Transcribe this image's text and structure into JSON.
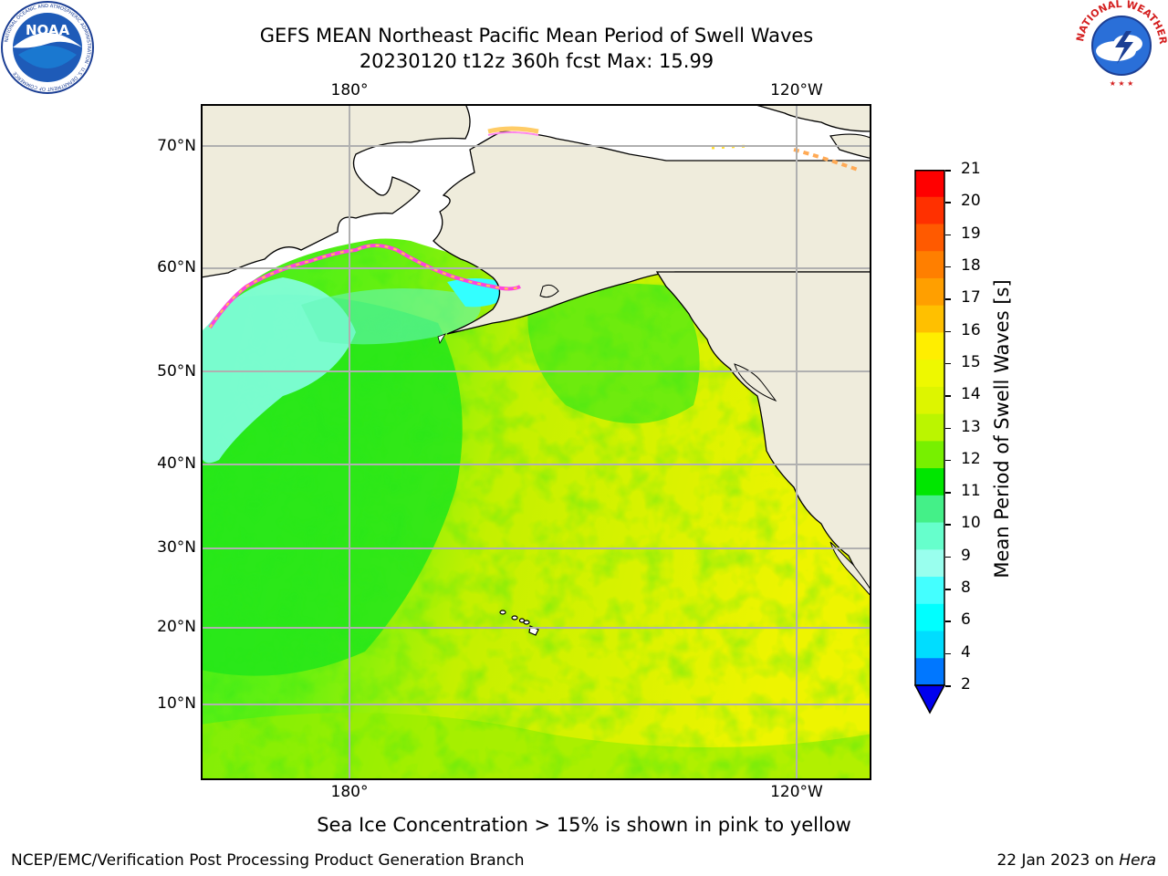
{
  "title": {
    "line1": "GEFS MEAN Northeast Pacific Mean Period of Swell Waves",
    "line2": "20230120 t12z 360h fcst   Max: 15.99"
  },
  "map": {
    "lon_labels_top": [
      "180°",
      "120°W"
    ],
    "lon_labels_bottom": [
      "180°",
      "120°W"
    ],
    "lat_labels": [
      "70°N",
      "60°N",
      "50°N",
      "40°N",
      "30°N",
      "20°N",
      "10°N"
    ],
    "colors": {
      "land": "#efecdc",
      "ocean_green": "#33ee22",
      "ocean_lime": "#aaee00",
      "ocean_yellow": "#eef000",
      "ocean_cyan": "#66ffee",
      "ice_pink": "#ff44dd",
      "grid": "#b0b0b0"
    }
  },
  "colorbar": {
    "label": "Mean Period of Swell Waves [s]",
    "ticks": [
      "21",
      "20",
      "19",
      "18",
      "17",
      "16",
      "15",
      "14",
      "13",
      "12",
      "11",
      "10",
      "9",
      "8",
      "6",
      "4",
      "2"
    ],
    "colors": [
      "#ff0000",
      "#ff3000",
      "#ff5a00",
      "#ff7f00",
      "#ff9f00",
      "#ffc000",
      "#ffee00",
      "#eef800",
      "#ddf500",
      "#bbf500",
      "#77f000",
      "#00e600",
      "#44f088",
      "#66ffcc",
      "#99ffee",
      "#44ffff",
      "#00ffff",
      "#00ddff",
      "#0077ff"
    ],
    "under_color": "#0000ee"
  },
  "note": "Sea Ice Concentration > 15% is shown in pink to yellow",
  "footer": {
    "left": "NCEP/EMC/Verification Post Processing Product Generation Branch",
    "right_prefix": "22 Jan 2023 on ",
    "right_machine": "Hera"
  },
  "logos": {
    "left": "NOAA",
    "left_ring": "NATIONAL OCEANIC AND ATMOSPHERIC ADMINISTRATION · U.S. DEPARTMENT OF COMMERCE",
    "right_ring": "NATIONAL WEATHER SERVICE"
  }
}
